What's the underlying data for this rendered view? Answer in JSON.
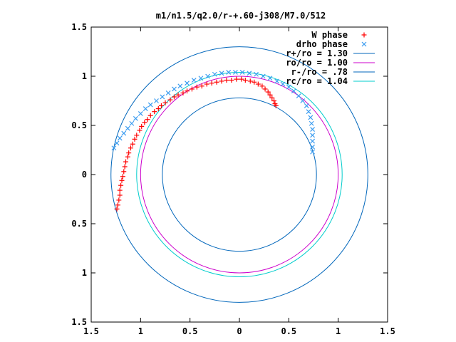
{
  "chart_data": {
    "type": "scatter",
    "title": "m1/n1.5/q2.0/r-+.60-j308/M7.0/512",
    "xlim": [
      -1.5,
      1.5
    ],
    "ylim": [
      -1.5,
      1.5
    ],
    "ticks": [
      -1.5,
      -1,
      -0.5,
      0,
      0.5,
      1,
      1.5
    ],
    "tick_labels": [
      "1.5",
      "1",
      "0.5",
      "0",
      "0.5",
      "1",
      "1.5"
    ],
    "legend_position": "top-right",
    "colors": {
      "w_phase": "#ff0000",
      "drho_phase": "#3a9cf0",
      "r_plus": "#0066bb",
      "r_o": "#cc00cc",
      "r_minus": "#0066bb",
      "r_c": "#00cccc"
    },
    "legend": [
      {
        "key": "w_phase",
        "label": "W phase",
        "marker": "+"
      },
      {
        "key": "drho_phase",
        "label": "drho phase",
        "marker": "x"
      },
      {
        "key": "r_plus",
        "label": "r+/ro = 1.30",
        "marker": "line"
      },
      {
        "key": "r_o",
        "label": "ro/ro = 1.00",
        "marker": "line"
      },
      {
        "key": "r_minus",
        "label": "r-/ro = .78",
        "marker": "line"
      },
      {
        "key": "r_c",
        "label": "rc/ro = 1.04",
        "marker": "line"
      }
    ],
    "circles": [
      {
        "key": "r_plus",
        "radius": 1.3
      },
      {
        "key": "r_o",
        "radius": 1.0
      },
      {
        "key": "r_minus",
        "radius": 0.78
      },
      {
        "key": "r_c",
        "radius": 1.04
      }
    ],
    "series": [
      {
        "key": "w_phase",
        "name": "W phase",
        "marker": "+",
        "points": [
          [
            -1.24,
            -0.35
          ],
          [
            -1.23,
            -0.31
          ],
          [
            -1.22,
            -0.26
          ],
          [
            -1.21,
            -0.21
          ],
          [
            -1.21,
            -0.16
          ],
          [
            -1.2,
            -0.11
          ],
          [
            -1.19,
            -0.06
          ],
          [
            -1.18,
            -0.02
          ],
          [
            -1.17,
            0.03
          ],
          [
            -1.16,
            0.08
          ],
          [
            -1.15,
            0.13
          ],
          [
            -1.13,
            0.18
          ],
          [
            -1.12,
            0.22
          ],
          [
            -1.1,
            0.27
          ],
          [
            -1.08,
            0.31
          ],
          [
            -1.06,
            0.36
          ],
          [
            -1.04,
            0.4
          ],
          [
            -1.01,
            0.45
          ],
          [
            -0.99,
            0.49
          ],
          [
            -0.96,
            0.53
          ],
          [
            -0.93,
            0.56
          ],
          [
            -0.9,
            0.6
          ],
          [
            -0.86,
            0.64
          ],
          [
            -0.82,
            0.67
          ],
          [
            -0.79,
            0.7
          ],
          [
            -0.75,
            0.73
          ],
          [
            -0.7,
            0.76
          ],
          [
            -0.66,
            0.79
          ],
          [
            -0.62,
            0.81
          ],
          [
            -0.57,
            0.83
          ],
          [
            -0.53,
            0.85
          ],
          [
            -0.48,
            0.87
          ],
          [
            -0.43,
            0.89
          ],
          [
            -0.38,
            0.9
          ],
          [
            -0.33,
            0.92
          ],
          [
            -0.28,
            0.93
          ],
          [
            -0.23,
            0.94
          ],
          [
            -0.18,
            0.95
          ],
          [
            -0.13,
            0.96
          ],
          [
            -0.08,
            0.96
          ],
          [
            -0.03,
            0.97
          ],
          [
            0.02,
            0.97
          ],
          [
            0.06,
            0.96
          ],
          [
            0.11,
            0.95
          ],
          [
            0.15,
            0.94
          ],
          [
            0.19,
            0.92
          ],
          [
            0.23,
            0.9
          ],
          [
            0.26,
            0.87
          ],
          [
            0.29,
            0.84
          ],
          [
            0.31,
            0.81
          ],
          [
            0.33,
            0.78
          ],
          [
            0.35,
            0.75
          ],
          [
            0.36,
            0.72
          ],
          [
            0.37,
            0.7
          ]
        ]
      },
      {
        "key": "drho_phase",
        "name": "drho phase",
        "marker": "x",
        "points": [
          [
            -1.27,
            0.27
          ],
          [
            -1.24,
            0.32
          ],
          [
            -1.21,
            0.37
          ],
          [
            -1.17,
            0.42
          ],
          [
            -1.13,
            0.47
          ],
          [
            -1.09,
            0.52
          ],
          [
            -1.05,
            0.57
          ],
          [
            -1.0,
            0.62
          ],
          [
            -0.95,
            0.67
          ],
          [
            -0.9,
            0.71
          ],
          [
            -0.84,
            0.75
          ],
          [
            -0.78,
            0.79
          ],
          [
            -0.72,
            0.83
          ],
          [
            -0.66,
            0.87
          ],
          [
            -0.6,
            0.9
          ],
          [
            -0.53,
            0.93
          ],
          [
            -0.46,
            0.96
          ],
          [
            -0.39,
            0.98
          ],
          [
            -0.32,
            1.0
          ],
          [
            -0.25,
            1.02
          ],
          [
            -0.18,
            1.03
          ],
          [
            -0.11,
            1.04
          ],
          [
            -0.04,
            1.04
          ],
          [
            0.03,
            1.04
          ],
          [
            0.1,
            1.03
          ],
          [
            0.17,
            1.02
          ],
          [
            0.24,
            1.0
          ],
          [
            0.31,
            0.98
          ],
          [
            0.38,
            0.95
          ],
          [
            0.44,
            0.92
          ],
          [
            0.5,
            0.89
          ],
          [
            0.55,
            0.85
          ],
          [
            0.6,
            0.8
          ],
          [
            0.64,
            0.75
          ],
          [
            0.68,
            0.7
          ],
          [
            0.7,
            0.64
          ],
          [
            0.72,
            0.58
          ],
          [
            0.73,
            0.52
          ],
          [
            0.74,
            0.46
          ],
          [
            0.74,
            0.4
          ],
          [
            0.74,
            0.34
          ],
          [
            0.74,
            0.28
          ],
          [
            0.74,
            0.23
          ]
        ]
      }
    ]
  }
}
